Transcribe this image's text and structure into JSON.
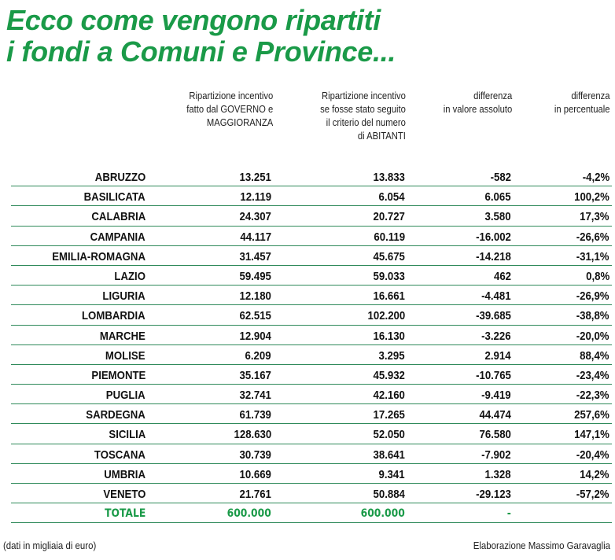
{
  "title": {
    "line1": "Ecco come vengono ripartiti",
    "line2": "i fondi a Comuni e Province..."
  },
  "headers": [
    [
      "Ripartizione incentivo",
      "fatto dal GOVERNO e",
      "MAGGIORANZA"
    ],
    [
      "Ripartizione incentivo",
      "se fosse stato seguito",
      "il criterio del numero",
      "di ABITANTI"
    ],
    [
      "differenza",
      "in valore assoluto"
    ],
    [
      "differenza",
      "in percentuale"
    ]
  ],
  "rows": [
    [
      "ABRUZZO",
      "13.251",
      "13.833",
      "-582",
      "-4,2%"
    ],
    [
      "BASILICATA",
      "12.119",
      "6.054",
      "6.065",
      "100,2%"
    ],
    [
      "CALABRIA",
      "24.307",
      "20.727",
      "3.580",
      "17,3%"
    ],
    [
      "CAMPANIA",
      "44.117",
      "60.119",
      "-16.002",
      "-26,6%"
    ],
    [
      "EMILIA-ROMAGNA",
      "31.457",
      "45.675",
      "-14.218",
      "-31,1%"
    ],
    [
      "LAZIO",
      "59.495",
      "59.033",
      "462",
      "0,8%"
    ],
    [
      "LIGURIA",
      "12.180",
      "16.661",
      "-4.481",
      "-26,9%"
    ],
    [
      "LOMBARDIA",
      "62.515",
      "102.200",
      "-39.685",
      "-38,8%"
    ],
    [
      "MARCHE",
      "12.904",
      "16.130",
      "-3.226",
      "-20,0%"
    ],
    [
      "MOLISE",
      "6.209",
      "3.295",
      "2.914",
      "88,4%"
    ],
    [
      "PIEMONTE",
      "35.167",
      "45.932",
      "-10.765",
      "-23,4%"
    ],
    [
      "PUGLIA",
      "32.741",
      "42.160",
      "-9.419",
      "-22,3%"
    ],
    [
      "SARDEGNA",
      "61.739",
      "17.265",
      "44.474",
      "257,6%"
    ],
    [
      "SICILIA",
      "128.630",
      "52.050",
      "76.580",
      "147,1%"
    ],
    [
      "TOSCANA",
      "30.739",
      "38.641",
      "-7.902",
      "-20,4%"
    ],
    [
      "UMBRIA",
      "10.669",
      "9.341",
      "1.328",
      "14,2%"
    ],
    [
      "VENETO",
      "21.761",
      "50.884",
      "-29.123",
      "-57,2%"
    ]
  ],
  "total": [
    "TOTALE",
    "600.000",
    "600.000",
    "-",
    ""
  ],
  "footer": {
    "note": "(dati in migliaia di euro)",
    "credit": "Elaborazione Massimo Garavaglia"
  },
  "colors": {
    "accent": "#1a9a48",
    "rule": "#2f8a5a"
  }
}
